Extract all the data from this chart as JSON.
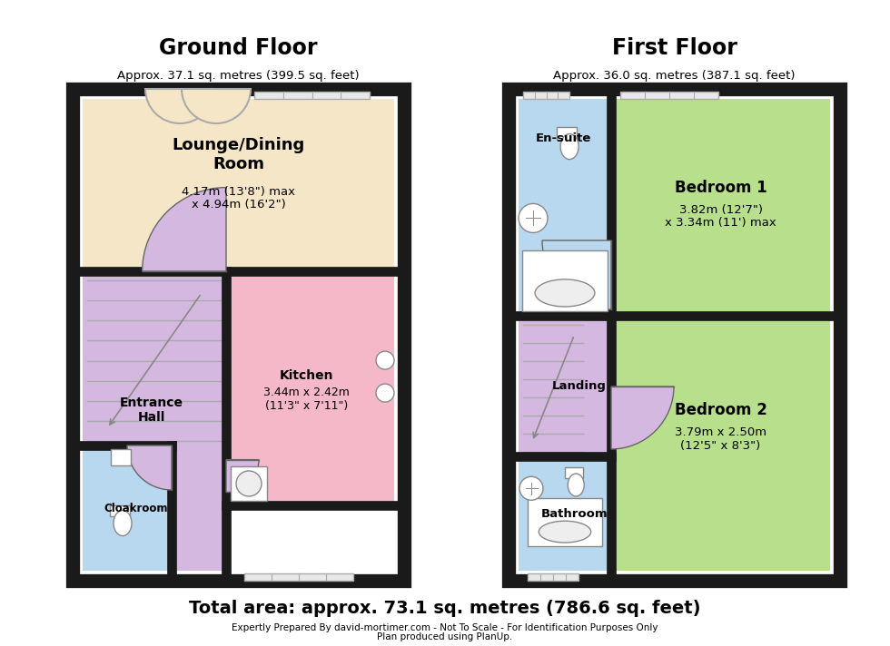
{
  "bg": "#ffffff",
  "wall_color": "#1a1a1a",
  "ground_title": "Ground Floor",
  "ground_subtitle": "Approx. 37.1 sq. metres (399.5 sq. feet)",
  "first_title": "First Floor",
  "first_subtitle": "Approx. 36.0 sq. metres (387.1 sq. feet)",
  "total_area": "Total area: approx. 73.1 sq. metres (786.6 sq. feet)",
  "footer1": "Expertly Prepared By david-mortimer.com - Not To Scale - For Identification Purposes Only",
  "footer2": "Plan produced using PlanUp.",
  "c_lounge": "#f5e6c8",
  "c_hall": "#d4b8e0",
  "c_kitchen": "#f5b8c8",
  "c_cloak": "#b8d8f0",
  "c_ensuite": "#b8d8f0",
  "c_bed1": "#b8e08c",
  "c_bed2": "#b8e08c",
  "c_landing": "#d4b8e0",
  "c_bathroom": "#b8d8f0",
  "c_wall": "#1a1a1a",
  "c_fixture": "#ffffff",
  "c_window": "#e8e8e8"
}
